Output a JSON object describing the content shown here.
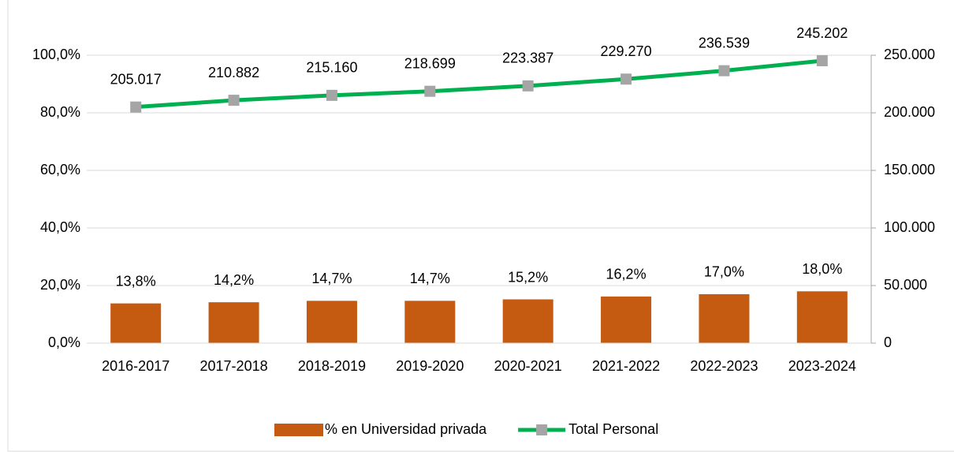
{
  "chart_data": {
    "type": "bar_line",
    "categories": [
      "2016-2017",
      "2017-2018",
      "2018-2019",
      "2019-2020",
      "2020-2021",
      "2021-2022",
      "2022-2023",
      "2023-2024"
    ],
    "series": [
      {
        "name": "% en Universidad privada",
        "type": "bar",
        "color": "#c55a11",
        "values": [
          13.8,
          14.2,
          14.7,
          14.7,
          15.2,
          16.2,
          17.0,
          18.0
        ],
        "value_labels": [
          "13,8%",
          "14,2%",
          "14,7%",
          "14,7%",
          "15,2%",
          "16,2%",
          "17,0%",
          "18,0%"
        ]
      },
      {
        "name": "Total Personal",
        "type": "line",
        "axis": "y2",
        "color": "#00b050",
        "marker_color": "#a5a5a5",
        "values": [
          205017,
          210882,
          215160,
          218699,
          223387,
          229270,
          236539,
          245202
        ],
        "value_labels": [
          "205.017",
          "210.882",
          "215.160",
          "218.699",
          "223.387",
          "229.270",
          "236.539",
          "245.202"
        ]
      }
    ],
    "ylim": [
      0,
      100
    ],
    "yticks": [
      {
        "value": 0,
        "label": "0,0%"
      },
      {
        "value": 20,
        "label": "20,0%"
      },
      {
        "value": 40,
        "label": "40,0%"
      },
      {
        "value": 60,
        "label": "60,0%"
      },
      {
        "value": 80,
        "label": "80,0%"
      },
      {
        "value": 100,
        "label": "100,0%"
      }
    ],
    "y2lim": [
      0,
      250000
    ],
    "y2ticks": [
      0,
      {
        "value": 50000,
        "label": "50.000"
      },
      {
        "value": 100000,
        "label": "100.000"
      },
      {
        "value": 150000,
        "label": "150.000"
      },
      {
        "value": 200000,
        "label": "200.000"
      },
      {
        "value": 250000,
        "label": "250.000"
      }
    ],
    "grid": true,
    "legend": "bottom"
  }
}
